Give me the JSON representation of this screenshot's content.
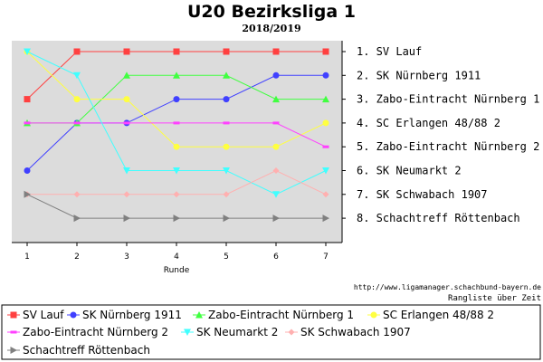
{
  "chart_data": {
    "type": "line",
    "title": "U20 Bezirksliga 1",
    "subtitle": "2018/2019",
    "xlabel": "Runde",
    "ylabel": "",
    "x": [
      1,
      2,
      3,
      4,
      5,
      6,
      7
    ],
    "ylim": [
      0.6,
      9.1
    ],
    "y_inverted": true,
    "grid": false,
    "legend_position": "bottom",
    "standings": [
      "1.  SV Lauf",
      "2.  SK Nürnberg 1911",
      "3.  Zabo-Eintracht Nürnberg 1",
      "4.  SC Erlangen 48/88 2",
      "5.  Zabo-Eintracht Nürnberg 2",
      "6.  SK Neumarkt 2",
      "7.  SK Schwabach 1907",
      "8.  Schachtreff Röttenbach"
    ],
    "series": [
      {
        "name": "SV Lauf",
        "color": "#ff4040",
        "marker": "square",
        "values": [
          3,
          1,
          1,
          1,
          1,
          1,
          1
        ]
      },
      {
        "name": "SK Nürnberg 1911",
        "color": "#4040ff",
        "marker": "circle",
        "values": [
          6,
          4,
          4,
          3,
          3,
          2,
          2
        ]
      },
      {
        "name": "Zabo-Eintracht Nürnberg 1",
        "color": "#40ff40",
        "marker": "triangle-up",
        "values": [
          4,
          4,
          2,
          2,
          2,
          3,
          3
        ]
      },
      {
        "name": "SC Erlangen 48/88 2",
        "color": "#ffff40",
        "marker": "circle",
        "values": [
          1,
          3,
          3,
          5,
          5,
          5,
          4
        ]
      },
      {
        "name": "Zabo-Eintracht Nürnberg 2",
        "color": "#ff40ff",
        "marker": "dash",
        "values": [
          4,
          4,
          4,
          4,
          4,
          4,
          5
        ]
      },
      {
        "name": "SK Neumarkt 2",
        "color": "#40ffff",
        "marker": "triangle-down",
        "values": [
          1,
          2,
          6,
          6,
          6,
          7,
          6
        ]
      },
      {
        "name": "SK Schwabach 1907",
        "color": "#ffb0b0",
        "marker": "diamond",
        "values": [
          7,
          7,
          7,
          7,
          7,
          6,
          7
        ]
      },
      {
        "name": "Schachtreff Röttenbach",
        "color": "#808080",
        "marker": "triangle-right",
        "values": [
          7,
          8,
          8,
          8,
          8,
          8,
          8
        ]
      }
    ]
  },
  "footer": {
    "url": "http://www.ligamanager.schachbund-bayern.de",
    "caption": "Rangliste über Zeit"
  }
}
